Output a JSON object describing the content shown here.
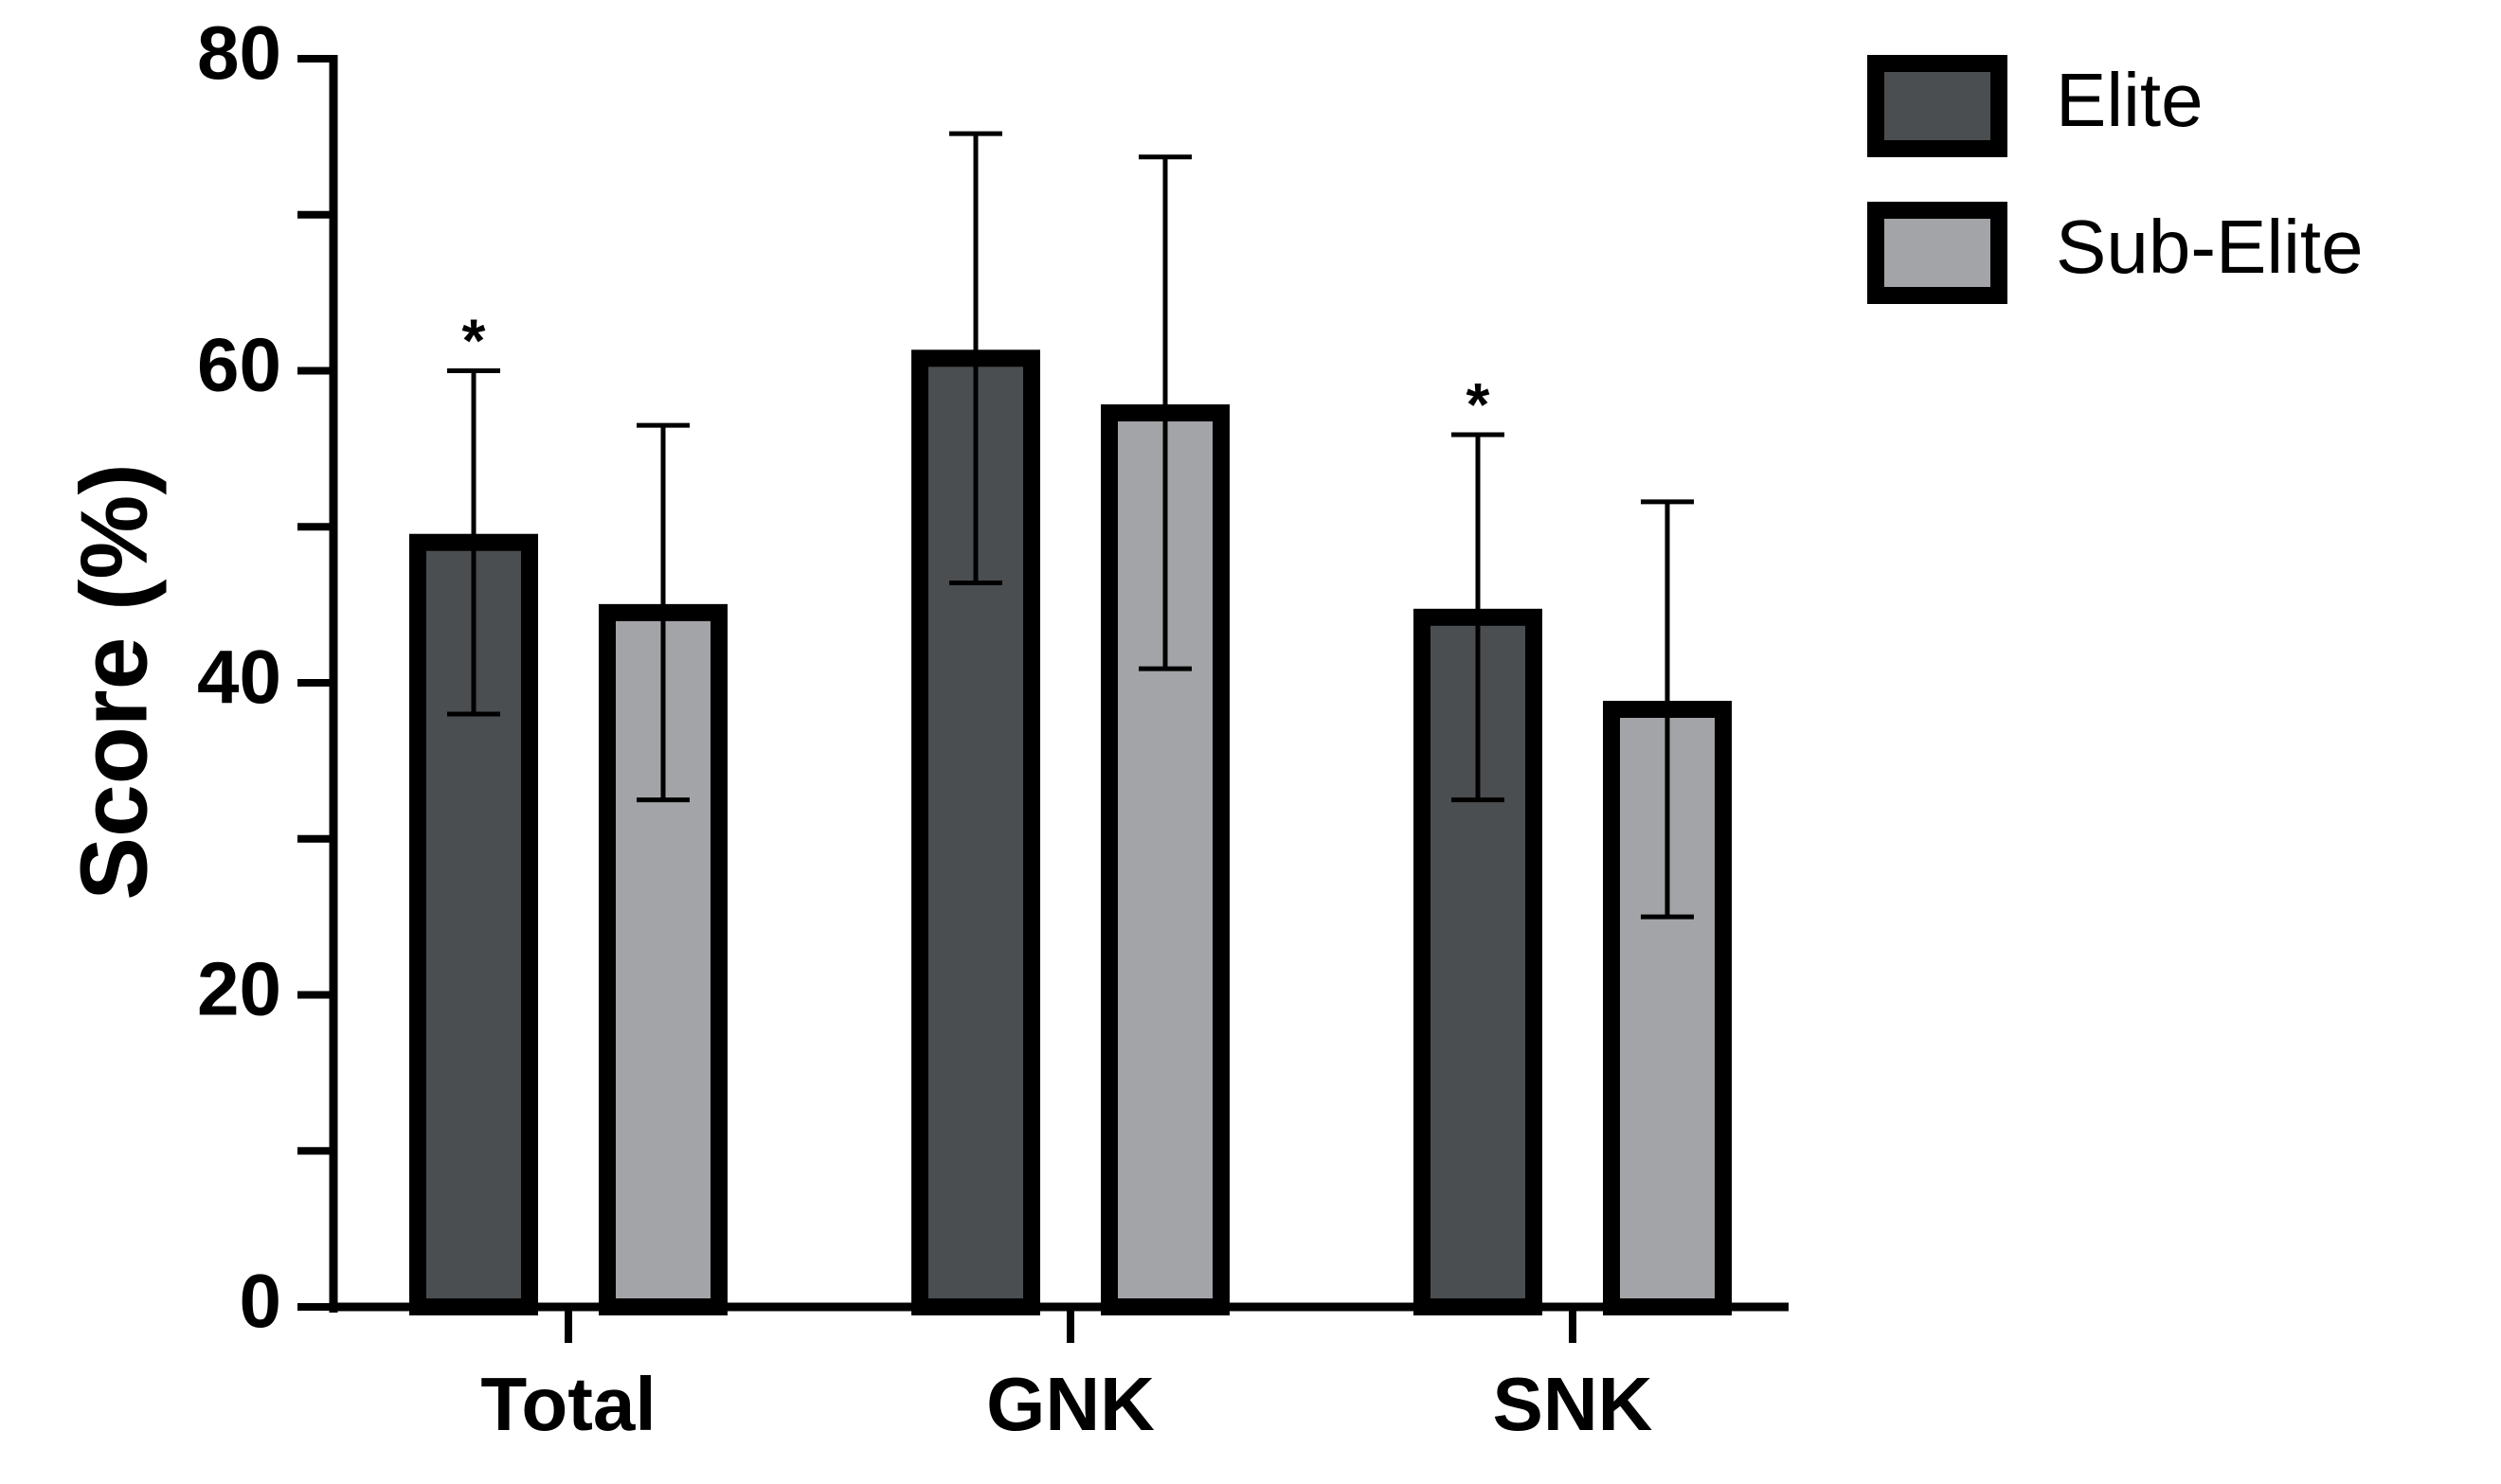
{
  "chart_data": {
    "type": "bar",
    "title": "",
    "xlabel": "",
    "ylabel": "Score (%)",
    "ylim": [
      0,
      80
    ],
    "yticks": [
      0,
      20,
      40,
      60,
      80
    ],
    "y_minor_step": 10,
    "grid": false,
    "legend_position": "top-right",
    "categories": [
      "Total",
      "GNK",
      "SNK"
    ],
    "series": [
      {
        "name": "Elite",
        "color": "#4b4e50",
        "values": [
          49,
          60.8,
          44.2
        ],
        "error": [
          11,
          14.4,
          11.7
        ]
      },
      {
        "name": "Sub-Elite",
        "color": "#a2a4a7",
        "values": [
          44.5,
          57.3,
          38.3
        ],
        "error": [
          12,
          16.4,
          13.3
        ]
      }
    ],
    "significance": [
      {
        "series": 0,
        "category": 0,
        "label": "*"
      },
      {
        "series": 0,
        "category": 2,
        "label": "*"
      }
    ]
  }
}
